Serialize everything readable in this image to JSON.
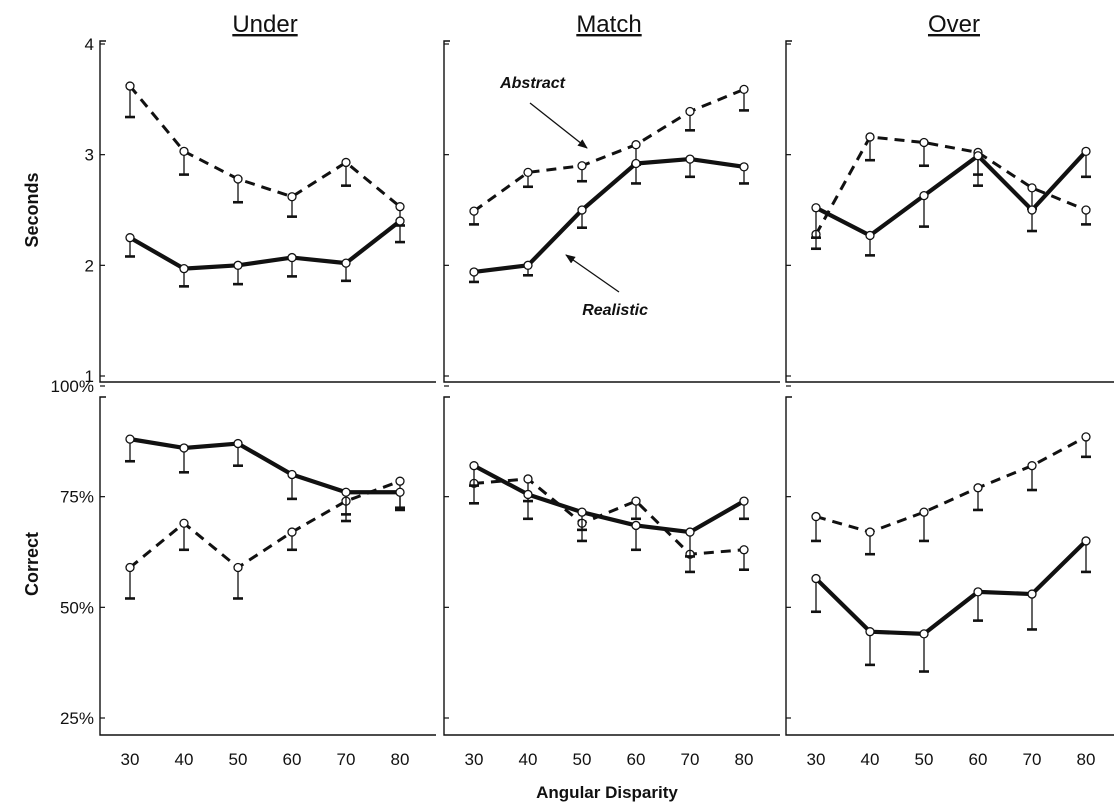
{
  "chart_data": {
    "type": "line",
    "xlabel": "Angular Disparity",
    "x": [
      30,
      40,
      50,
      60,
      70,
      80
    ],
    "columns": [
      "Under",
      "Match",
      "Over"
    ],
    "rows": [
      {
        "ylabel": "Seconds",
        "ylim": [
          1,
          4
        ],
        "yticks": [
          1,
          2,
          3,
          4
        ],
        "ytick_labels": [
          "1",
          "2",
          "3",
          "4"
        ]
      },
      {
        "ylabel": "Correct",
        "ylim": [
          25,
          100
        ],
        "yticks": [
          25,
          50,
          75,
          100
        ],
        "ytick_labels": [
          "25%",
          "50%",
          "75%",
          "100%"
        ]
      }
    ],
    "series_styles": {
      "Abstract": {
        "dash": "dashed",
        "color": "#111111"
      },
      "Realistic": {
        "dash": "solid",
        "color": "#111111"
      }
    },
    "panels": [
      {
        "row": 0,
        "col": 0,
        "series": [
          {
            "name": "Abstract",
            "values": [
              3.62,
              3.03,
              2.78,
              2.62,
              2.93,
              2.53
            ],
            "error_low": [
              3.34,
              2.82,
              2.57,
              2.44,
              2.72,
              2.36
            ]
          },
          {
            "name": "Realistic",
            "values": [
              2.25,
              1.97,
              2.0,
              2.07,
              2.02,
              2.4
            ],
            "error_low": [
              2.08,
              1.81,
              1.83,
              1.9,
              1.86,
              2.21
            ]
          }
        ]
      },
      {
        "row": 0,
        "col": 1,
        "series": [
          {
            "name": "Abstract",
            "values": [
              2.49,
              2.84,
              2.9,
              3.09,
              3.39,
              3.59
            ],
            "error_low": [
              2.37,
              2.71,
              2.76,
              2.91,
              3.22,
              3.4
            ]
          },
          {
            "name": "Realistic",
            "values": [
              1.94,
              2.0,
              2.5,
              2.92,
              2.96,
              2.89
            ],
            "error_low": [
              1.85,
              1.91,
              2.34,
              2.74,
              2.8,
              2.74
            ]
          }
        ]
      },
      {
        "row": 0,
        "col": 2,
        "series": [
          {
            "name": "Abstract",
            "values": [
              2.28,
              3.16,
              3.11,
              3.02,
              2.7,
              2.5
            ],
            "error_low": [
              2.15,
              2.95,
              2.9,
              2.82,
              2.51,
              2.37
            ]
          },
          {
            "name": "Realistic",
            "values": [
              2.52,
              2.27,
              2.63,
              2.99,
              2.5,
              3.03
            ],
            "error_low": [
              2.25,
              2.09,
              2.35,
              2.72,
              2.31,
              2.8
            ]
          }
        ]
      },
      {
        "row": 1,
        "col": 0,
        "series": [
          {
            "name": "Abstract",
            "values": [
              59,
              69,
              59,
              67,
              74,
              78.5
            ],
            "error_low": [
              52,
              63,
              52,
              63,
              69.5,
              72.5
            ]
          },
          {
            "name": "Realistic",
            "values": [
              88,
              86,
              87,
              80,
              76,
              76
            ],
            "error_low": [
              83,
              80.5,
              82,
              74.5,
              71,
              72
            ]
          }
        ]
      },
      {
        "row": 1,
        "col": 1,
        "series": [
          {
            "name": "Abstract",
            "values": [
              78,
              79,
              69,
              74,
              62,
              63
            ],
            "error_low": [
              73.5,
              74,
              65,
              70,
              58,
              58.5
            ]
          },
          {
            "name": "Realistic",
            "values": [
              82,
              75.5,
              71.5,
              68.5,
              67,
              74
            ],
            "error_low": [
              77.5,
              70,
              67.5,
              63,
              61.5,
              70
            ]
          }
        ]
      },
      {
        "row": 1,
        "col": 2,
        "series": [
          {
            "name": "Abstract",
            "values": [
              70.5,
              67,
              71.5,
              77,
              82,
              88.5
            ],
            "error_low": [
              65,
              62,
              65,
              72,
              76.5,
              84
            ]
          },
          {
            "name": "Realistic",
            "values": [
              56.5,
              44.5,
              44,
              53.5,
              53,
              65
            ],
            "error_low": [
              49,
              37,
              35.5,
              47,
              45,
              58
            ]
          }
        ]
      }
    ],
    "annotations": [
      {
        "text": "Abstract",
        "panel_row": 0,
        "panel_col": 1,
        "points_to": "Abstract"
      },
      {
        "text": "Realistic",
        "panel_row": 0,
        "panel_col": 1,
        "points_to": "Realistic"
      }
    ],
    "grid": false,
    "legend": "none"
  }
}
